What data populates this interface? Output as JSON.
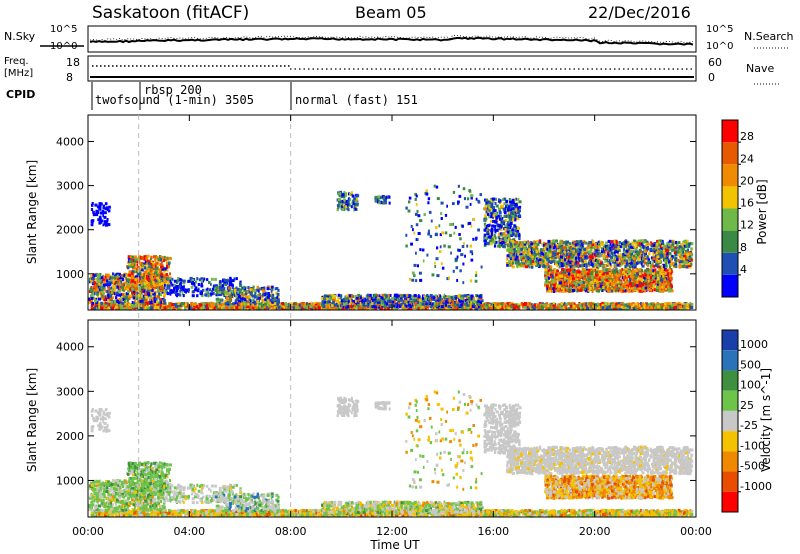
{
  "header": {
    "title": "Saskatoon (fitACF)",
    "beam": "Beam 05",
    "date": "22/Dec/2016"
  },
  "noise_panel": {
    "left_label": "N.Sky",
    "right_label": "N.Search",
    "left_ticks": [
      "10^5",
      "10^0"
    ],
    "right_ticks": [
      "10^5",
      "10^0"
    ]
  },
  "freq_panel": {
    "left_label_line1": "Freq.",
    "left_label_line2": "[MHz]",
    "right_label": "Nave",
    "left_ticks": [
      "18",
      "8"
    ],
    "right_ticks": [
      "60",
      "0"
    ]
  },
  "cpid": {
    "label": "CPID",
    "modes": [
      {
        "name": "twofsound (1-min) 3505"
      },
      {
        "name": "rbsp 200"
      },
      {
        "name": "normal (fast) 151"
      }
    ]
  },
  "xaxis": {
    "title": "Time UT",
    "ticks": [
      "00:00",
      "04:00",
      "08:00",
      "12:00",
      "16:00",
      "20:00",
      "00:00"
    ]
  },
  "power_panel": {
    "ylabel": "Slant Range [km]",
    "yticks": [
      "1000",
      "2000",
      "3000",
      "4000"
    ],
    "colorbar_label": "Power [dB]",
    "colorbar_ticks": [
      "28",
      "24",
      "20",
      "16",
      "12",
      "8",
      "4"
    ],
    "colors": [
      "#0000ff",
      "#1f4fb4",
      "#3a8a46",
      "#6fb84a",
      "#f2c400",
      "#f08a00",
      "#e85a00",
      "#ff0000"
    ]
  },
  "velocity_panel": {
    "ylabel": "Slant Range [km]",
    "yticks": [
      "1000",
      "2000",
      "3000",
      "4000"
    ],
    "colorbar_label": "Velocity [m s^-1]",
    "colorbar_ticks": [
      "1000",
      "500",
      "100",
      "25",
      "-25",
      "-100",
      "-500",
      "-1000"
    ],
    "colors": [
      "#1b3faa",
      "#2a73b8",
      "#3f8f40",
      "#6cc44a",
      "#c8c8c8",
      "#f5c200",
      "#ef8a00",
      "#e84d00",
      "#ff0000"
    ]
  },
  "chart_data": {
    "type": "heatmap",
    "x_range_hours": [
      0,
      24
    ],
    "y_range_km": [
      180,
      4600
    ],
    "mode_changes_hours": [
      2,
      8
    ],
    "mode_labels": [
      "twofsound (1-min) 3505",
      "rbsp 200",
      "normal (fast) 151"
    ],
    "power_range_db": [
      0,
      32
    ],
    "velocity_range": [
      -1500,
      1500
    ]
  }
}
